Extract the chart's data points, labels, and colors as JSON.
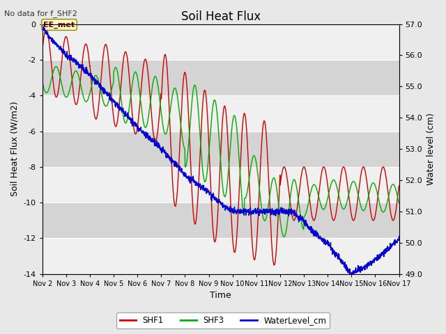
{
  "title": "Soil Heat Flux",
  "top_left_text": "No data for f_SHF2",
  "annotation_text": "EE_met",
  "xlabel": "Time",
  "ylabel_left": "Soil Heat Flux (W/m2)",
  "ylabel_right": "Water level (cm)",
  "ylim_left": [
    -14,
    0
  ],
  "ylim_right": [
    49.0,
    57.0
  ],
  "xtick_labels": [
    "Nov 2",
    "Nov 3",
    "Nov 4",
    "Nov 5",
    "Nov 6",
    "Nov 7",
    "Nov 8",
    "Nov 9",
    "Nov 10",
    "Nov 11",
    "Nov 12",
    "Nov 13",
    "Nov 14",
    "Nov 15",
    "Nov 16",
    "Nov 17"
  ],
  "bg_color": "#e8e8e8",
  "plot_bg_color": "#ebebeb",
  "shf1_color": "#cc0000",
  "shf3_color": "#00aa00",
  "water_color": "#0000cc",
  "white_band_color": "#d8d8d8",
  "title_fontsize": 12,
  "axis_fontsize": 9,
  "tick_fontsize": 8
}
